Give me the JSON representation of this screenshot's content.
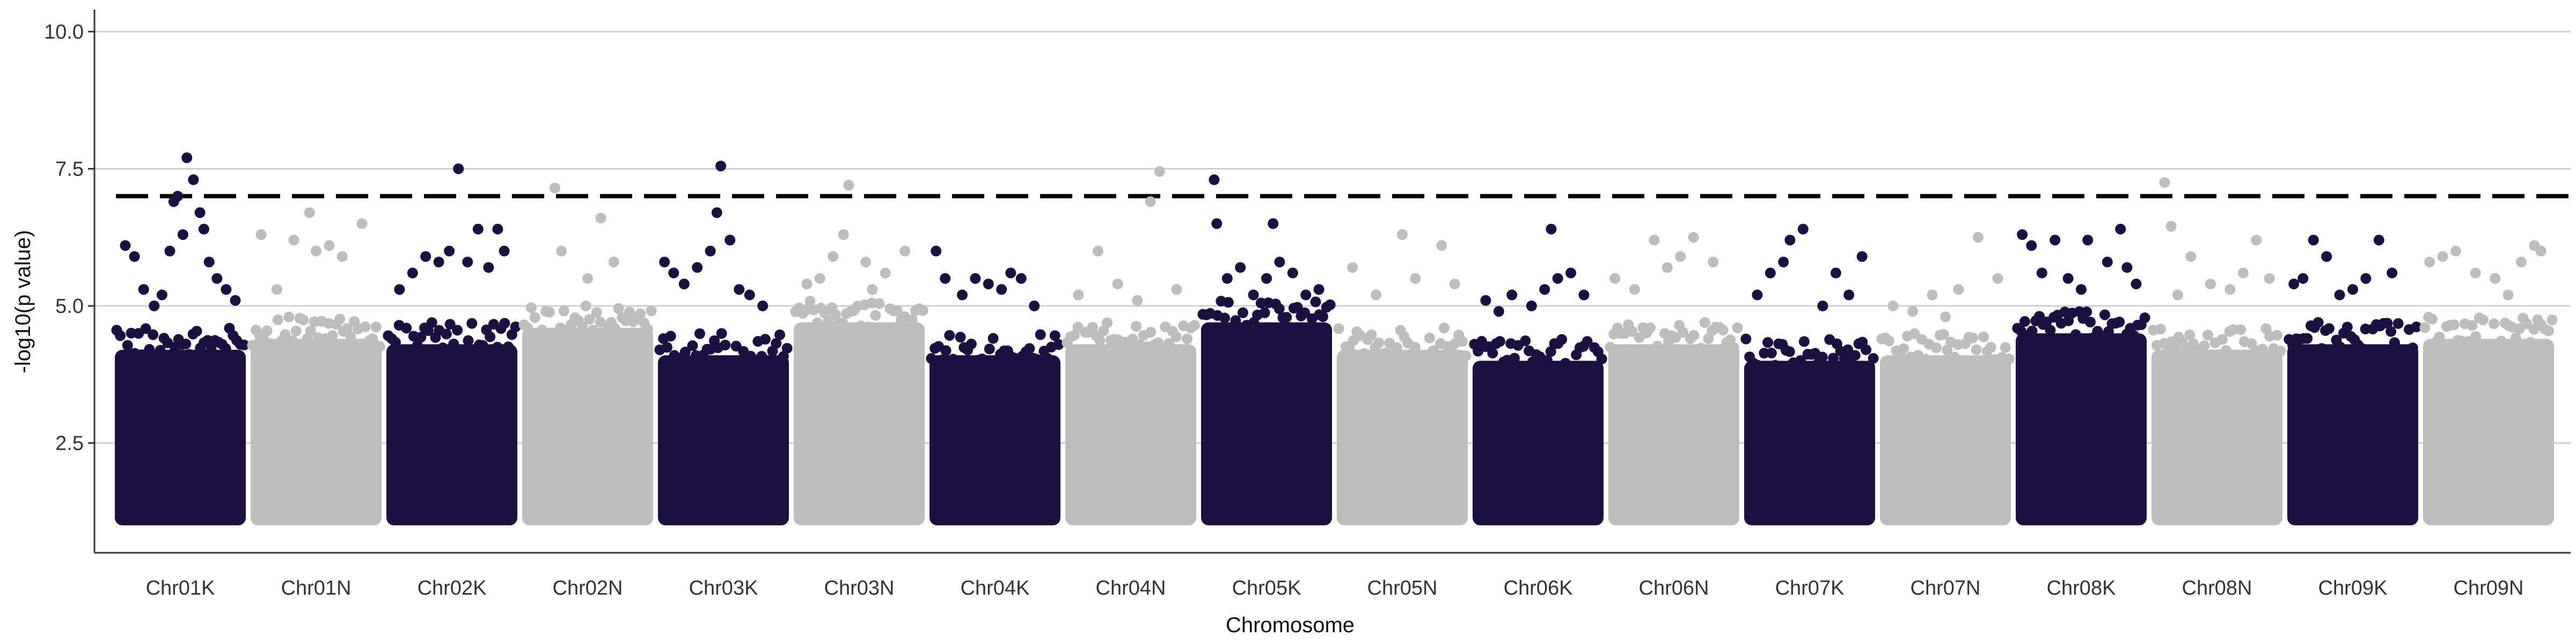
{
  "chart_data": {
    "type": "scatter",
    "title": "",
    "xlabel": "Chromosome",
    "ylabel": "-log10(p value)",
    "ylim": [
      0.5,
      10.4
    ],
    "yticks": [
      2.5,
      5.0,
      7.5,
      10.0
    ],
    "ytick_labels": [
      "2.5",
      "5.0",
      "7.5",
      "10.0"
    ],
    "grid": "horizontal major lines",
    "significance_threshold": 7.0,
    "colors": {
      "dark": "#1b1040",
      "light": "#bdbdbd",
      "threshold": "#000000",
      "grid": "#cfcfcf",
      "axis": "#333333"
    },
    "categories": [
      "Chr01K",
      "Chr01N",
      "Chr02K",
      "Chr02N",
      "Chr03K",
      "Chr03N",
      "Chr04K",
      "Chr04N",
      "Chr05K",
      "Chr05N",
      "Chr06K",
      "Chr06N",
      "Chr07K",
      "Chr07N",
      "Chr08K",
      "Chr08N",
      "Chr09K",
      "Chr09N"
    ],
    "dense_band_top": [
      4.2,
      4.4,
      4.3,
      4.6,
      4.1,
      4.7,
      4.1,
      4.3,
      4.7,
      4.2,
      4.0,
      4.3,
      4.0,
      4.1,
      4.5,
      4.2,
      4.3,
      4.4
    ],
    "series": [
      {
        "chromosome": "Chr01K",
        "x": [
          0.08,
          0.15,
          0.22,
          0.3,
          0.36,
          0.42,
          0.45,
          0.48,
          0.52,
          0.55,
          0.6,
          0.65,
          0.68,
          0.72,
          0.78,
          0.85,
          0.92
        ],
        "y": [
          6.1,
          5.9,
          5.3,
          5.0,
          5.2,
          6.0,
          6.9,
          7.0,
          6.3,
          7.7,
          7.3,
          6.7,
          6.4,
          5.8,
          5.5,
          5.3,
          5.1
        ]
      },
      {
        "chromosome": "Chr01N",
        "x": [
          0.08,
          0.2,
          0.33,
          0.45,
          0.5,
          0.6,
          0.7,
          0.85
        ],
        "y": [
          6.3,
          5.3,
          6.2,
          6.7,
          6.0,
          6.1,
          5.9,
          6.5
        ]
      },
      {
        "chromosome": "Chr02K",
        "x": [
          0.1,
          0.2,
          0.3,
          0.4,
          0.48,
          0.55,
          0.62,
          0.7,
          0.78,
          0.85,
          0.9
        ],
        "y": [
          5.3,
          5.6,
          5.9,
          5.8,
          6.0,
          7.5,
          5.8,
          6.4,
          5.7,
          6.4,
          6.0
        ]
      },
      {
        "chromosome": "Chr02N",
        "x": [
          0.25,
          0.3,
          0.5,
          0.6,
          0.7
        ],
        "y": [
          7.15,
          6.0,
          5.5,
          6.6,
          5.8
        ]
      },
      {
        "chromosome": "Chr03K",
        "x": [
          0.05,
          0.12,
          0.2,
          0.3,
          0.4,
          0.45,
          0.48,
          0.55,
          0.62,
          0.7,
          0.8
        ],
        "y": [
          5.8,
          5.6,
          5.4,
          5.7,
          6.0,
          6.7,
          7.55,
          6.2,
          5.3,
          5.2,
          5.0
        ]
      },
      {
        "chromosome": "Chr03N",
        "x": [
          0.1,
          0.2,
          0.3,
          0.38,
          0.42,
          0.55,
          0.6,
          0.7,
          0.85
        ],
        "y": [
          5.4,
          5.5,
          5.9,
          6.3,
          7.2,
          5.8,
          5.3,
          5.6,
          6.0
        ]
      },
      {
        "chromosome": "Chr04K",
        "x": [
          0.05,
          0.12,
          0.25,
          0.35,
          0.45,
          0.55,
          0.62,
          0.7,
          0.8
        ],
        "y": [
          6.0,
          5.5,
          5.2,
          5.5,
          5.4,
          5.3,
          5.6,
          5.5,
          5.0
        ]
      },
      {
        "chromosome": "Chr04N",
        "x": [
          0.1,
          0.25,
          0.4,
          0.55,
          0.65,
          0.72,
          0.85
        ],
        "y": [
          5.2,
          6.0,
          5.4,
          5.1,
          6.9,
          7.45,
          5.3
        ]
      },
      {
        "chromosome": "Chr05K",
        "x": [
          0.1,
          0.12,
          0.2,
          0.3,
          0.4,
          0.5,
          0.55,
          0.6,
          0.7,
          0.8,
          0.9
        ],
        "y": [
          7.3,
          6.5,
          5.5,
          5.7,
          5.2,
          5.5,
          6.5,
          5.8,
          5.6,
          5.2,
          5.3
        ]
      },
      {
        "chromosome": "Chr05N",
        "x": [
          0.12,
          0.3,
          0.5,
          0.6,
          0.8,
          0.9
        ],
        "y": [
          5.7,
          5.2,
          6.3,
          5.5,
          6.1,
          5.4
        ]
      },
      {
        "chromosome": "Chr06K",
        "x": [
          0.1,
          0.2,
          0.3,
          0.45,
          0.55,
          0.6,
          0.65,
          0.75,
          0.85
        ],
        "y": [
          5.1,
          4.9,
          5.2,
          5.0,
          5.3,
          6.4,
          5.5,
          5.6,
          5.2
        ]
      },
      {
        "chromosome": "Chr06N",
        "x": [
          0.05,
          0.2,
          0.35,
          0.45,
          0.55,
          0.65,
          0.8
        ],
        "y": [
          5.5,
          5.3,
          6.2,
          5.7,
          5.9,
          6.25,
          5.8
        ]
      },
      {
        "chromosome": "Chr07K",
        "x": [
          0.1,
          0.2,
          0.3,
          0.35,
          0.45,
          0.6,
          0.7,
          0.8,
          0.9
        ],
        "y": [
          5.2,
          5.6,
          5.8,
          6.2,
          6.4,
          5.0,
          5.6,
          5.2,
          5.9
        ]
      },
      {
        "chromosome": "Chr07N",
        "x": [
          0.1,
          0.25,
          0.4,
          0.5,
          0.6,
          0.75,
          0.9
        ],
        "y": [
          5.0,
          4.9,
          5.2,
          4.8,
          5.3,
          6.25,
          5.5
        ]
      },
      {
        "chromosome": "Chr08K",
        "x": [
          0.05,
          0.12,
          0.2,
          0.3,
          0.4,
          0.5,
          0.55,
          0.7,
          0.8,
          0.85,
          0.92
        ],
        "y": [
          6.3,
          6.1,
          5.6,
          6.2,
          5.5,
          5.3,
          6.2,
          5.8,
          6.4,
          5.7,
          5.4
        ]
      },
      {
        "chromosome": "Chr08N",
        "x": [
          0.1,
          0.15,
          0.2,
          0.3,
          0.45,
          0.6,
          0.7,
          0.8,
          0.9
        ],
        "y": [
          7.25,
          6.45,
          5.2,
          5.9,
          5.4,
          5.3,
          5.6,
          6.2,
          5.5
        ]
      },
      {
        "chromosome": "Chr09K",
        "x": [
          0.05,
          0.12,
          0.2,
          0.3,
          0.4,
          0.5,
          0.6,
          0.7,
          0.8
        ],
        "y": [
          5.4,
          5.5,
          6.2,
          5.9,
          5.2,
          5.3,
          5.5,
          6.2,
          5.6
        ]
      },
      {
        "chromosome": "Chr09N",
        "x": [
          0.05,
          0.15,
          0.25,
          0.4,
          0.55,
          0.65,
          0.75,
          0.85,
          0.9
        ],
        "y": [
          5.8,
          5.9,
          6.0,
          5.6,
          5.5,
          5.2,
          5.8,
          6.1,
          6.0
        ]
      }
    ]
  }
}
